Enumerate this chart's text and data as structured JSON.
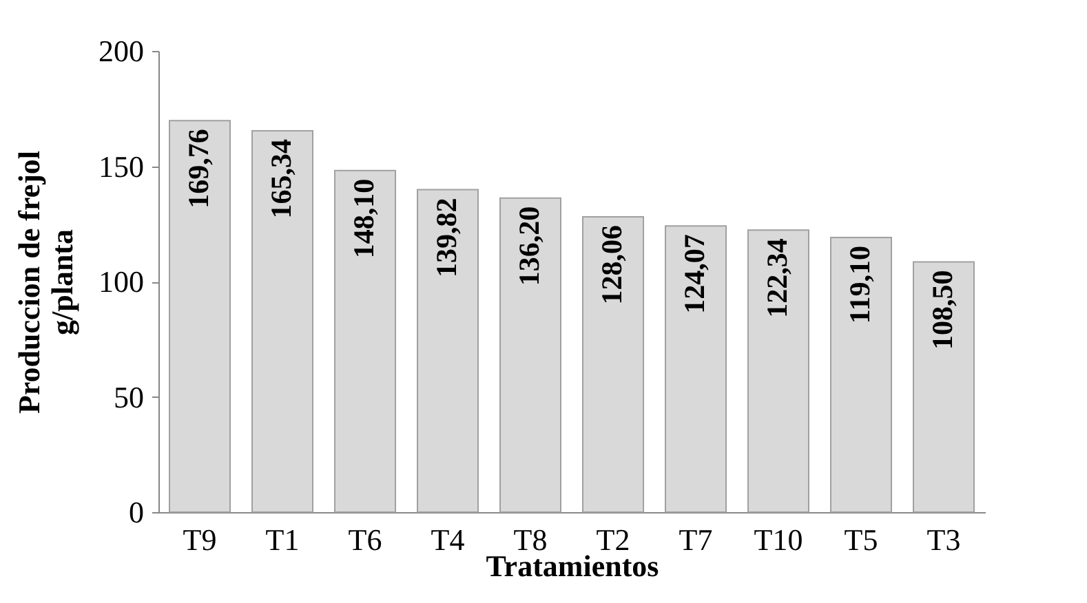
{
  "chart_data": {
    "type": "bar",
    "xlabel": "Tratamientos",
    "ylabel": "Produccion de frejol\ng/planta",
    "categories": [
      "T9",
      "T1",
      "T6",
      "T4",
      "T8",
      "T2",
      "T7",
      "T10",
      "T5",
      "T3"
    ],
    "values": [
      169.76,
      165.34,
      148.1,
      139.82,
      136.2,
      128.06,
      124.07,
      122.34,
      119.1,
      108.5
    ],
    "value_labels": [
      "169,76",
      "165,34",
      "148,10",
      "139,82",
      "136,20",
      "128,06",
      "124,07",
      "122,34",
      "119,10",
      "108,50"
    ],
    "color": "#d9d9d9",
    "ylim": [
      0,
      200
    ],
    "yticks": [
      0,
      50,
      100,
      150,
      200
    ],
    "grid": false
  }
}
